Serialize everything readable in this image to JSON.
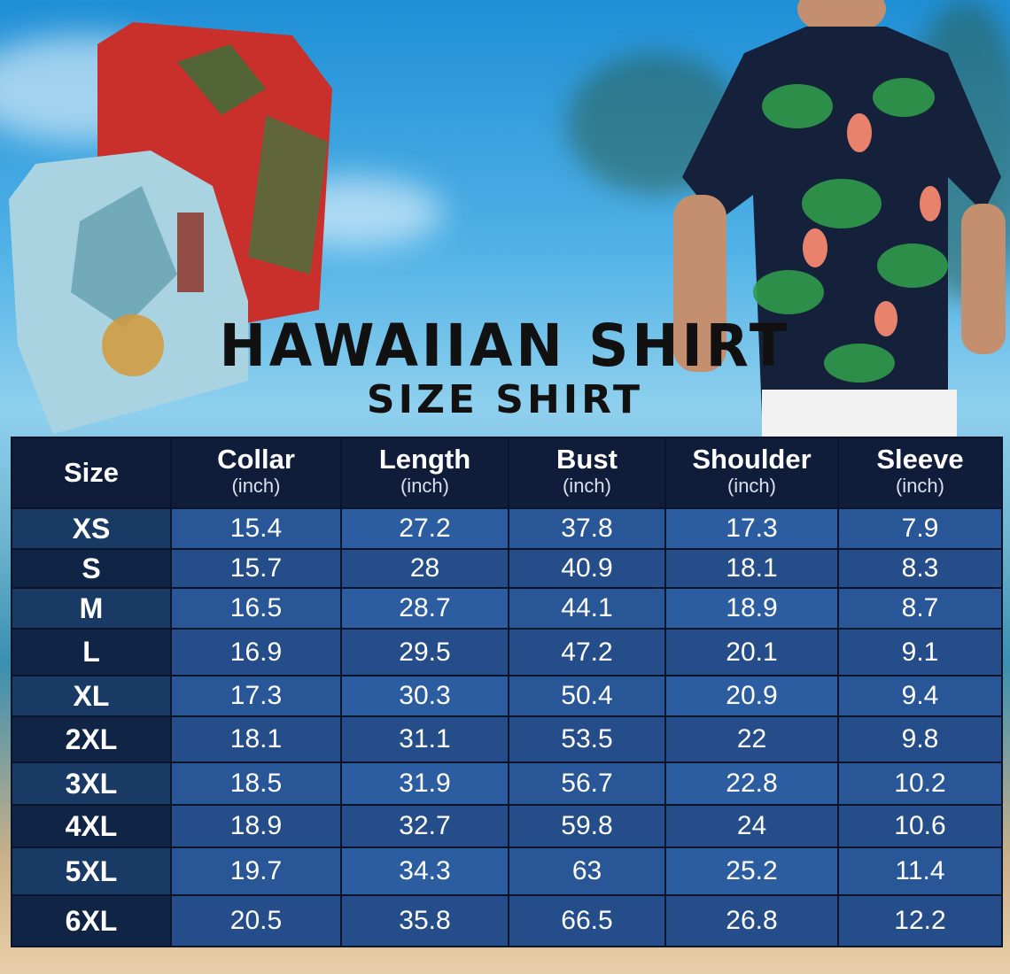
{
  "title": "HAWAIIAN SHIRT",
  "subtitle": "SIZE SHIRT",
  "colors": {
    "header": "#0f1d3a",
    "cell": "#2a5b9d",
    "size_cell": "#102446",
    "title": "#111111"
  },
  "table": {
    "columns": [
      {
        "label": "Size",
        "unit": ""
      },
      {
        "label": "Collar",
        "unit": "(inch)"
      },
      {
        "label": "Length",
        "unit": "(inch)"
      },
      {
        "label": "Bust",
        "unit": "(inch)"
      },
      {
        "label": "Shoulder",
        "unit": "(inch)"
      },
      {
        "label": "Sleeve",
        "unit": "(inch)"
      }
    ],
    "rows": [
      [
        "XS",
        "15.4",
        "27.2",
        "37.8",
        "17.3",
        "7.9"
      ],
      [
        "S",
        "15.7",
        "28",
        "40.9",
        "18.1",
        "8.3"
      ],
      [
        "M",
        "16.5",
        "28.7",
        "44.1",
        "18.9",
        "8.7"
      ],
      [
        "L",
        "16.9",
        "29.5",
        "47.2",
        "20.1",
        "9.1"
      ],
      [
        "XL",
        "17.3",
        "30.3",
        "50.4",
        "20.9",
        "9.4"
      ],
      [
        "2XL",
        "18.1",
        "31.1",
        "53.5",
        "22",
        "9.8"
      ],
      [
        "3XL",
        "18.5",
        "31.9",
        "56.7",
        "22.8",
        "10.2"
      ],
      [
        "4XL",
        "18.9",
        "32.7",
        "59.8",
        "24",
        "10.6"
      ],
      [
        "5XL",
        "19.7",
        "34.3",
        "63",
        "25.2",
        "11.4"
      ],
      [
        "6XL",
        "20.5",
        "35.8",
        "66.5",
        "26.8",
        "12.2"
      ]
    ]
  }
}
